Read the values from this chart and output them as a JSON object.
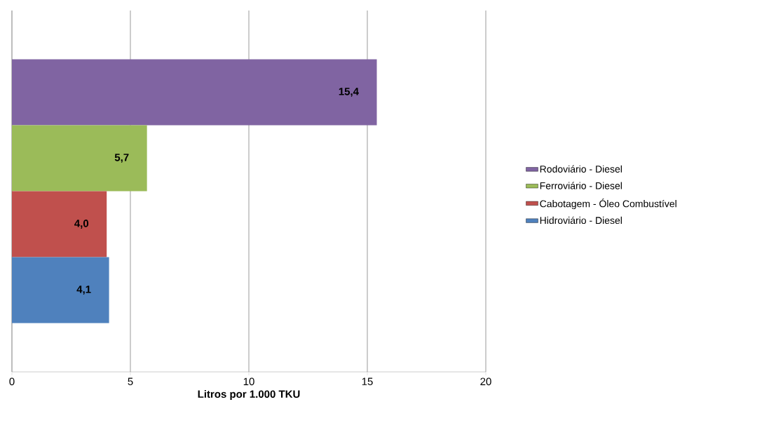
{
  "chart_data": {
    "type": "bar",
    "orientation": "horizontal",
    "categories": [
      null
    ],
    "series": [
      {
        "name": "Rodoviário - Diesel",
        "color": "#8064a2",
        "values": [
          15.4
        ],
        "value_labels": [
          "15,4"
        ]
      },
      {
        "name": "Ferroviário - Diesel",
        "color": "#9bbb59",
        "values": [
          5.7
        ],
        "value_labels": [
          "5,7"
        ]
      },
      {
        "name": "Cabotagem - Óleo Combustível",
        "color": "#c0504d",
        "values": [
          4.0
        ],
        "value_labels": [
          "4,0"
        ]
      },
      {
        "name": "Hidroviário - Diesel",
        "color": "#4f81bd",
        "values": [
          4.1
        ],
        "value_labels": [
          "4,1"
        ]
      }
    ],
    "xlabel": "Litros por 1.000 TKU",
    "xlim": [
      0,
      20
    ],
    "xticks": [
      0,
      5,
      10,
      15,
      20
    ],
    "grid": "x",
    "legend": "right"
  }
}
